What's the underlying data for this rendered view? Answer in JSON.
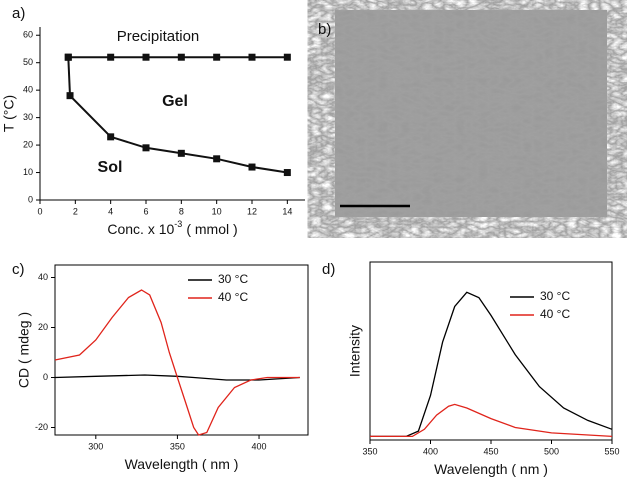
{
  "chart_data": [
    {
      "type": "line",
      "label": "a)",
      "x_label": "Conc. x 10",
      "x_label_exponent": "-3",
      "x_label_unit": "( mmol )",
      "y_label": "T (°C)",
      "xlim": [
        0,
        15
      ],
      "ylim": [
        0,
        63
      ],
      "xticks": [
        0,
        2,
        4,
        6,
        8,
        10,
        12,
        14
      ],
      "yticks": [
        0,
        10,
        20,
        30,
        40,
        50,
        60
      ],
      "annotations": [
        "Precipitation",
        "Gel",
        "Sol"
      ],
      "series": [
        {
          "color": "#111111",
          "x": [
            1.6,
            4,
            6,
            8,
            10,
            12,
            14
          ],
          "values": [
            52,
            52,
            52,
            52,
            52,
            52,
            52
          ]
        },
        {
          "color": "#111111",
          "x": [
            1.6,
            1.7,
            4,
            6,
            8,
            10,
            12,
            14
          ],
          "values": [
            52,
            38,
            23,
            19,
            17,
            15,
            12,
            10
          ]
        }
      ]
    },
    {
      "type": "image",
      "label": "b)"
    },
    {
      "type": "line",
      "label": "c)",
      "x_label": "Wavelength  ( nm )",
      "y_label": "CD  ( mdeg )",
      "xlim": [
        275,
        430
      ],
      "ylim": [
        -23,
        45
      ],
      "xticks": [
        300,
        350,
        400
      ],
      "yticks": [
        -20,
        0,
        20,
        40
      ],
      "series": [
        {
          "name": "30 °C",
          "color": "#000000",
          "x": [
            275,
            300,
            330,
            350,
            360,
            380,
            400,
            425
          ],
          "values": [
            0,
            0.5,
            1,
            0.5,
            0,
            -1,
            -1,
            0
          ]
        },
        {
          "name": "40 °C",
          "color": "#e0241b",
          "x": [
            275,
            290,
            300,
            310,
            320,
            328,
            333,
            340,
            345,
            350,
            355,
            360,
            363,
            368,
            375,
            385,
            395,
            405,
            415,
            425
          ],
          "values": [
            7,
            9,
            15,
            24,
            32,
            35,
            33,
            22,
            10,
            0,
            -10,
            -20,
            -23,
            -22,
            -12,
            -4,
            -1,
            0,
            0,
            0
          ]
        }
      ]
    },
    {
      "type": "line",
      "label": "d)",
      "x_label": "Wavelength  ( nm )",
      "y_label": "Intensity",
      "xlim": [
        350,
        550
      ],
      "ylim": [
        0,
        100
      ],
      "xticks": [
        350,
        400,
        450,
        500,
        550
      ],
      "series": [
        {
          "name": "30 °C",
          "color": "#000000",
          "x": [
            350,
            380,
            390,
            400,
            410,
            420,
            430,
            440,
            450,
            470,
            490,
            510,
            530,
            550
          ],
          "values": [
            2,
            2,
            5,
            25,
            55,
            75,
            83,
            80,
            70,
            48,
            30,
            18,
            11,
            6
          ]
        },
        {
          "name": "40 °C",
          "color": "#e0241b",
          "x": [
            350,
            385,
            395,
            405,
            415,
            420,
            430,
            450,
            470,
            500,
            550
          ],
          "values": [
            2,
            2,
            6,
            14,
            19,
            20,
            18,
            12,
            7,
            4,
            2
          ]
        }
      ]
    }
  ]
}
